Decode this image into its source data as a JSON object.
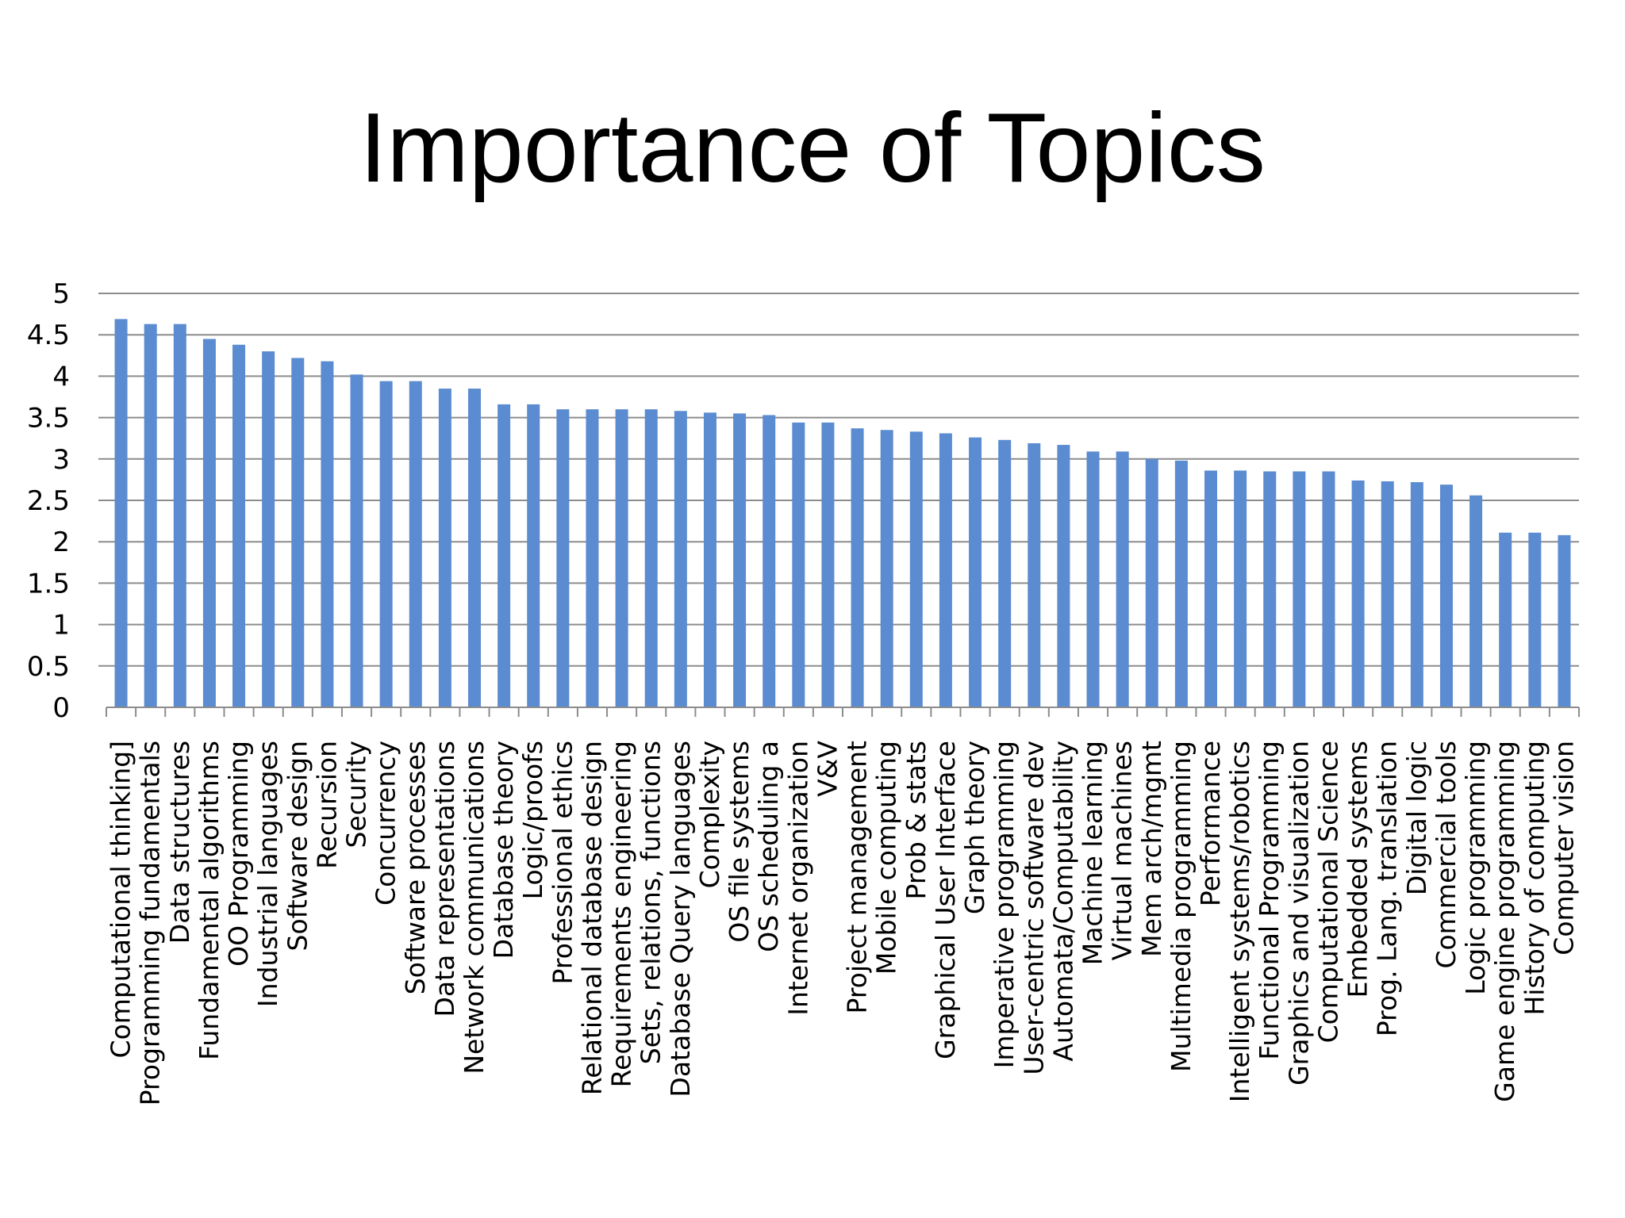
{
  "title": "Importance of Topics",
  "colors": {
    "bar": "#5b8bd0",
    "grid": "#8c8c8c",
    "axis": "#8c8c8c",
    "text": "#000000"
  },
  "chart_data": {
    "type": "bar",
    "title": "",
    "xlabel": "",
    "ylabel": "",
    "ylim": [
      0,
      5
    ],
    "yticks": [
      "0",
      "0.5",
      "1",
      "1.5",
      "2",
      "2.5",
      "3",
      "3.5",
      "4",
      "4.5",
      "5"
    ],
    "grid": true,
    "legend": "none",
    "categories": [
      "Computational thinking]",
      "Programming fundamentals",
      "Data structures",
      "Fundamental algorithms",
      "OO Programming",
      "Industrial languages",
      "Software design",
      "Recursion",
      "Security",
      "Concurrency",
      "Software  processes",
      "Data representations",
      "Network communications",
      "Database theory",
      "Logic/proofs",
      "Professional ethics",
      "Relational database design",
      "Requirements engineering",
      "Sets, relations,  functions",
      "Database Query languages",
      "Complexity",
      "OS file systems",
      "OS scheduling a",
      "Internet organization",
      "V&V",
      "Project management",
      "Mobile computing",
      "Prob & stats",
      "Graphical User Interface",
      "Graph theory",
      "Imperative programming",
      "User-centric software dev",
      "Automata/Computability",
      "Machine learning",
      "Virtual machines",
      "Mem arch/mgmt",
      "Multimedia programming",
      "Performance",
      "Intelligent systems/robotics",
      "Functional Programming",
      "Graphics and visualization",
      "Computational Science",
      "Embedded  systems",
      "Prog. Lang. translation",
      "Digital logic",
      "Commercial tools",
      "Logic programming",
      "Game engine programming",
      "History of computing",
      "Computer vision"
    ],
    "values": [
      4.69,
      4.63,
      4.63,
      4.45,
      4.38,
      4.3,
      4.22,
      4.18,
      4.02,
      3.94,
      3.94,
      3.85,
      3.85,
      3.66,
      3.66,
      3.6,
      3.6,
      3.6,
      3.6,
      3.58,
      3.56,
      3.55,
      3.53,
      3.44,
      3.44,
      3.37,
      3.35,
      3.33,
      3.31,
      3.26,
      3.23,
      3.19,
      3.17,
      3.09,
      3.09,
      3.0,
      2.98,
      2.86,
      2.86,
      2.85,
      2.85,
      2.85,
      2.74,
      2.73,
      2.72,
      2.69,
      2.56,
      2.11,
      2.11,
      2.08
    ]
  }
}
